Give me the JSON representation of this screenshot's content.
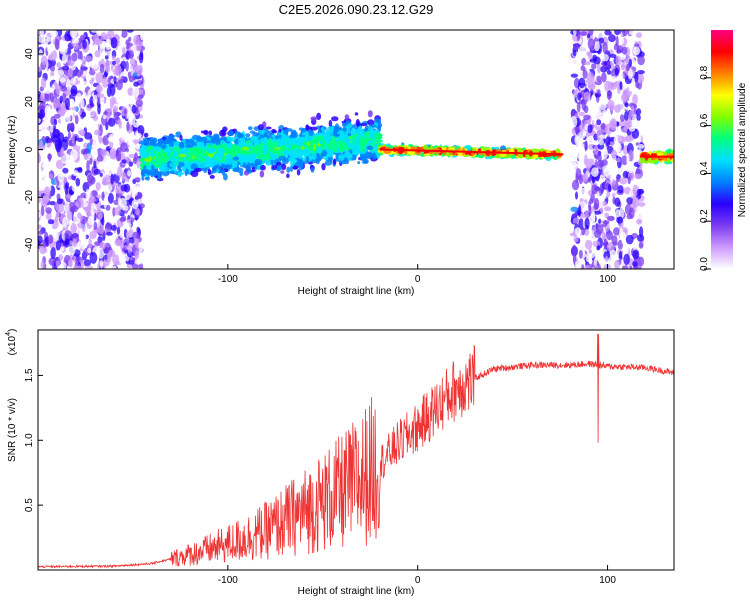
{
  "title": "C2E5.2026.090.23.12.G29",
  "chart_data": [
    {
      "type": "heatmap",
      "name": "spectrogram",
      "xlabel": "Height of straight line (km)",
      "ylabel": "Frequency (Hz)",
      "xlim": [
        -200,
        135
      ],
      "ylim": [
        -50,
        50
      ],
      "x_ticks": [
        -100,
        0,
        100
      ],
      "y_ticks": [
        -40,
        -20,
        0,
        20,
        40
      ],
      "colorbar": {
        "label": "Normalized spectral amplitude",
        "range": [
          0,
          1
        ],
        "ticks": [
          "0.0",
          "0.2",
          "0.4",
          "0.6",
          "0.8"
        ],
        "colormap": [
          "#ffffff",
          "#cc99ff",
          "#7a3cf0",
          "#2a00ff",
          "#0080ff",
          "#00e0ff",
          "#00ff80",
          "#80ff00",
          "#ffff00",
          "#ff8000",
          "#ff0000",
          "#ff0080"
        ]
      },
      "features": [
        {
          "region": "noise",
          "x_range": [
            -200,
            -145
          ],
          "note": "broadband noise"
        },
        {
          "region": "band",
          "x_range": [
            -145,
            -20
          ],
          "center_hz": [
            -4,
            4
          ],
          "spread_hz": 12
        },
        {
          "region": "band",
          "x_range": [
            -20,
            75
          ],
          "center_hz": [
            0,
            -2
          ],
          "spread_hz": 2
        },
        {
          "region": "noise",
          "x_range": [
            82,
            118
          ],
          "note": "broadband noise"
        },
        {
          "region": "band",
          "x_range": [
            118,
            135
          ],
          "center_hz": [
            -3,
            -3
          ],
          "spread_hz": 3
        }
      ]
    },
    {
      "type": "line",
      "name": "snr",
      "xlabel": "Height of straight line (km)",
      "ylabel": "SNR (10 * v/v)",
      "y_scale_label": "(x10",
      "y_scale_exp": "4",
      "xlim": [
        -200,
        135
      ],
      "ylim": [
        0,
        18500
      ],
      "x_ticks": [
        -100,
        0,
        100
      ],
      "y_ticks": [
        "0.5",
        "1.0",
        "1.5"
      ],
      "y_tick_values": [
        5000,
        10000,
        15000
      ],
      "color": "#ee3333",
      "series": [
        {
          "name": "SNR",
          "x": [
            -200,
            -160,
            -140,
            -120,
            -100,
            -80,
            -60,
            -40,
            -30,
            -20,
            -10,
            0,
            10,
            20,
            40,
            60,
            80,
            90,
            95,
            100,
            120,
            135
          ],
          "y": [
            250,
            300,
            500,
            1200,
            2000,
            3000,
            4500,
            6000,
            7000,
            8200,
            9800,
            11000,
            12500,
            14000,
            15500,
            15800,
            15800,
            15900,
            15800,
            15700,
            15600,
            15200
          ]
        }
      ],
      "spike": {
        "x": 95,
        "y_max": 18200,
        "y_min": 9800
      }
    }
  ]
}
